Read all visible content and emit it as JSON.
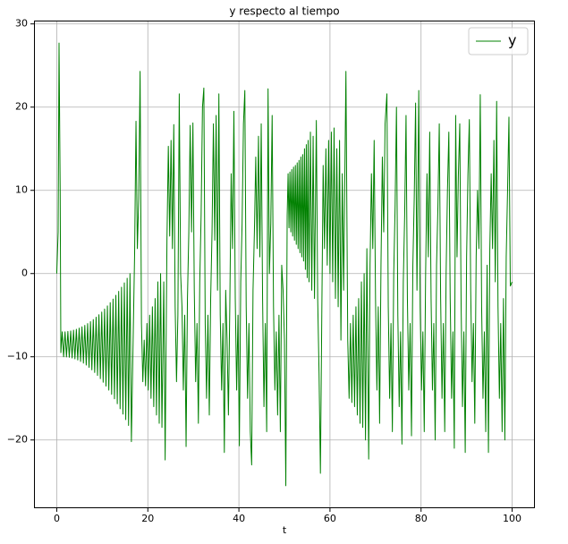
{
  "chart_data": {
    "type": "line",
    "title": "y respecto al tiempo",
    "x_label": "t",
    "xlim": [
      -5,
      105
    ],
    "ylim": [
      -28.2,
      30.4
    ],
    "xticks": [
      0,
      20,
      40,
      60,
      80,
      100
    ],
    "yticks": [
      {
        "value": -20,
        "label": "−20"
      },
      {
        "value": -10,
        "label": "−10"
      },
      0,
      10,
      20,
      30
    ],
    "grid": true,
    "legend": "upper right",
    "x": [
      0,
      0.3,
      0.5,
      0.75,
      0.9,
      1.2,
      1.51,
      1.82,
      2.13,
      2.44,
      2.75,
      3.06,
      3.37,
      3.68,
      3.99,
      4.3,
      4.61,
      4.92,
      5.23,
      5.54,
      5.85,
      6.16,
      6.47,
      6.78,
      7.09,
      7.4,
      7.71,
      8.02,
      8.33,
      8.64,
      8.95,
      9.26,
      9.57,
      9.88,
      10.19,
      10.5,
      10.81,
      11.12,
      11.43,
      11.74,
      12.05,
      12.36,
      12.67,
      12.98,
      13.29,
      13.6,
      13.91,
      14.22,
      14.53,
      14.84,
      15.15,
      15.46,
      15.77,
      16.08,
      16.39,
      17.1,
      17.4,
      17.7,
      18.0,
      18.3,
      18.6,
      18.9,
      19.2,
      19.5,
      19.8,
      20.1,
      20.4,
      20.7,
      21.0,
      21.3,
      21.6,
      21.9,
      22.2,
      22.5,
      22.8,
      23.1,
      23.5,
      23.8,
      24.2,
      24.5,
      24.8,
      25.1,
      25.4,
      25.7,
      26.0,
      26.3,
      26.6,
      26.9,
      27.2,
      27.5,
      27.8,
      28.1,
      28.4,
      28.7,
      29.0,
      29.3,
      29.6,
      29.9,
      30.2,
      30.5,
      30.8,
      31.1,
      31.4,
      31.7,
      32.0,
      32.3,
      32.6,
      32.9,
      33.2,
      33.5,
      33.8,
      34.1,
      34.4,
      34.7,
      35.0,
      35.3,
      35.6,
      35.9,
      36.2,
      36.5,
      36.8,
      37.1,
      37.4,
      37.7,
      38.0,
      38.3,
      38.6,
      38.9,
      39.2,
      39.5,
      39.8,
      40.1,
      40.4,
      40.7,
      41.0,
      41.3,
      41.6,
      41.9,
      42.2,
      42.5,
      42.8,
      43.1,
      43.4,
      43.7,
      44.0,
      44.3,
      44.6,
      44.9,
      45.2,
      45.5,
      45.8,
      46.1,
      46.4,
      46.7,
      47.0,
      47.3,
      47.6,
      47.9,
      48.2,
      48.5,
      48.8,
      49.1,
      49.4,
      49.7,
      50.0,
      50.3,
      50.6,
      50.8,
      51.0,
      51.2,
      51.4,
      51.6,
      51.8,
      52.0,
      52.2,
      52.4,
      52.6,
      52.8,
      53.0,
      53.2,
      53.4,
      53.6,
      53.8,
      54.0,
      54.2,
      54.4,
      54.6,
      54.8,
      55.0,
      55.2,
      55.4,
      55.7,
      56.0,
      56.3,
      56.6,
      57.0,
      57.3,
      57.6,
      57.9,
      58.2,
      58.5,
      58.8,
      59.1,
      59.4,
      59.7,
      60.0,
      60.3,
      60.6,
      60.9,
      61.2,
      61.5,
      61.8,
      62.1,
      62.4,
      62.7,
      63.0,
      63.5,
      63.9,
      64.2,
      64.5,
      64.8,
      65.1,
      65.4,
      65.7,
      66.0,
      66.3,
      66.6,
      66.9,
      67.2,
      67.5,
      67.8,
      68.1,
      68.5,
      68.8,
      69.1,
      69.4,
      69.7,
      70.0,
      70.3,
      70.6,
      70.9,
      71.2,
      71.5,
      71.8,
      72.1,
      72.5,
      72.8,
      73.1,
      73.4,
      73.7,
      74.0,
      74.3,
      74.6,
      74.9,
      75.2,
      75.5,
      75.8,
      76.1,
      76.4,
      76.7,
      77.0,
      77.3,
      77.6,
      77.9,
      78.2,
      78.5,
      78.8,
      79.1,
      79.5,
      79.8,
      80.1,
      80.4,
      80.7,
      81.0,
      81.3,
      81.6,
      81.9,
      82.2,
      82.5,
      82.8,
      83.1,
      83.4,
      83.7,
      84.0,
      84.3,
      84.6,
      84.9,
      85.2,
      85.5,
      85.8,
      86.1,
      86.4,
      86.7,
      87.0,
      87.3,
      87.6,
      87.9,
      88.2,
      88.5,
      88.8,
      89.1,
      89.4,
      89.7,
      90.0,
      90.3,
      90.6,
      90.9,
      91.2,
      91.5,
      91.8,
      92.1,
      92.4,
      92.7,
      93.0,
      93.3,
      93.6,
      93.9,
      94.2,
      94.5,
      94.8,
      95.1,
      95.4,
      95.7,
      96.0,
      96.3,
      96.6,
      96.9,
      97.2,
      97.5,
      97.8,
      98.1,
      98.4,
      98.7,
      99.0,
      99.3,
      99.6,
      100.0
    ],
    "series": [
      {
        "name": "y",
        "color": "#008000",
        "values": [
          0,
          5,
          27.7,
          10,
          -9.5,
          -7,
          -10,
          -7,
          -10.02,
          -6.95,
          -10.06,
          -6.9,
          -10.14,
          -6.8,
          -10.25,
          -6.7,
          -10.39,
          -6.56,
          -10.56,
          -6.4,
          -10.77,
          -6.22,
          -11,
          -6.01,
          -11.27,
          -5.78,
          -11.57,
          -5.53,
          -11.89,
          -5.25,
          -12.25,
          -4.95,
          -12.64,
          -4.62,
          -13.06,
          -4.26,
          -13.52,
          -3.89,
          -14,
          -3.49,
          -14.52,
          -3.06,
          -15.06,
          -2.61,
          -15.64,
          -2.14,
          -16.25,
          -1.64,
          -16.89,
          -1.12,
          -17.56,
          -0.57,
          -18.26,
          0,
          -20.2,
          2.5,
          18.3,
          3,
          9,
          24.3,
          -6,
          -13,
          -8,
          -13.5,
          -6,
          -14,
          -5,
          -15,
          -4,
          -16,
          -3,
          -17,
          -1,
          -18,
          0,
          -18.5,
          -1,
          -22.4,
          4,
          15.3,
          4.5,
          16,
          3,
          17.9,
          -4,
          -13,
          -5,
          21.6,
          0,
          -4,
          -14,
          -5,
          -20.8,
          -3,
          5,
          17.8,
          5,
          18.1,
          -2,
          -13,
          -6,
          -18,
          -1,
          7,
          20,
          22.3,
          -6,
          -15,
          -5,
          -17,
          -3,
          5,
          18,
          4,
          19,
          -2,
          21.6,
          -5,
          -14,
          -6,
          -21.5,
          -2,
          -8,
          -17,
          -4,
          12,
          3,
          19.5,
          -3,
          -14,
          -5,
          -20.7,
          -1,
          6,
          18,
          22,
          -4,
          -15,
          -6,
          -19,
          -23,
          -2,
          5,
          14,
          3,
          16.5,
          2,
          18,
          -3,
          -16,
          -6,
          -19,
          22.2,
          0,
          6,
          19,
          -4,
          -14,
          -7,
          -17,
          -5,
          -19,
          1,
          -2,
          -8,
          -25.5,
          7,
          12,
          5.5,
          12.2,
          5,
          12.5,
          4.5,
          12.8,
          4,
          13,
          3.5,
          13.3,
          3,
          13.6,
          2.5,
          14,
          2,
          14.3,
          1.5,
          15,
          0.5,
          15.5,
          -0.5,
          16,
          -1,
          17,
          -2,
          16.5,
          -3,
          18.4,
          -3,
          -12,
          -24,
          -5,
          13,
          3,
          15,
          1,
          16,
          0,
          17,
          -1,
          17.5,
          -3,
          15,
          -4,
          16,
          -8,
          12,
          -2,
          24.3,
          -8,
          -15,
          -6,
          -15.5,
          -5,
          -16,
          -4,
          -17,
          -3,
          -18,
          -1,
          -18.5,
          0,
          -20,
          3,
          -22.3,
          1,
          12,
          3,
          16,
          -3,
          -14,
          -4,
          -18,
          1,
          14,
          5,
          18,
          21.6,
          -4,
          -15,
          -6,
          -19,
          0,
          8,
          20,
          -5,
          -16,
          -7,
          -20.5,
          -1,
          7,
          19,
          -3,
          -14,
          -6,
          -19.5,
          1,
          9,
          20.5,
          -2,
          22,
          -4,
          -14,
          -7,
          -19,
          0,
          12,
          2,
          17,
          -3,
          -14,
          -6,
          -20,
          1,
          8,
          18,
          -3,
          -15,
          -6,
          -19,
          0,
          10,
          17,
          -3,
          -15,
          -7,
          -21,
          19,
          2,
          12,
          18,
          -4,
          -16,
          -7,
          -21.5,
          2,
          12,
          18.5,
          -2,
          -13,
          -6,
          -18,
          2,
          10,
          3,
          21.5,
          -4,
          -15,
          -7,
          -19,
          1,
          -21.5,
          3,
          12,
          3,
          16,
          -1,
          20.7,
          -4,
          -15,
          -6,
          -19,
          -3,
          -20,
          2,
          10,
          18.8,
          -1.5,
          -1
        ]
      }
    ]
  }
}
